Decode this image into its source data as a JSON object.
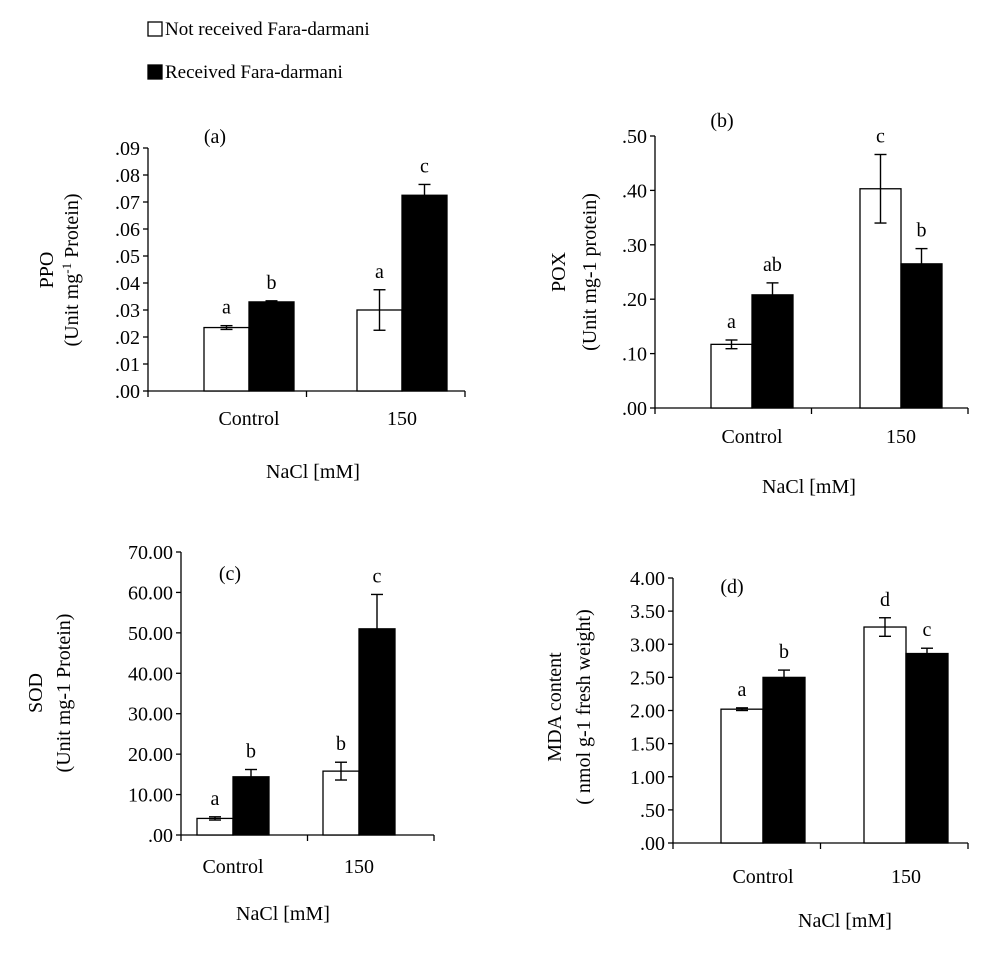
{
  "legend": {
    "items": [
      {
        "label": "Not received Fara-darmani",
        "fill": "#ffffff"
      },
      {
        "label": "Received Fara-darmani",
        "fill": "#000000"
      }
    ]
  },
  "chart_data": [
    {
      "type": "bar",
      "panel": "(a)",
      "categories": [
        "Control",
        "150"
      ],
      "xlabel": "NaCl [mM]",
      "ylabel_line1": "PPO",
      "ylabel_line2": "(Unit  mg",
      "ylabel_sup": "-1",
      "ylabel_line2_end": " Protein)",
      "ylim": [
        0,
        0.09
      ],
      "yticks": [
        ".00",
        ".01",
        ".02",
        ".03",
        ".04",
        ".05",
        ".06",
        ".07",
        ".08",
        ".09"
      ],
      "series": [
        {
          "name": "Not received Fara-darmani",
          "values": [
            0.0235,
            0.03
          ],
          "errors": [
            0.0007,
            0.0075
          ],
          "letters": [
            "a",
            "a"
          ]
        },
        {
          "name": "Received Fara-darmani",
          "values": [
            0.033,
            0.0725
          ],
          "errors": [
            0.0004,
            0.004
          ],
          "letters": [
            "b",
            "c"
          ]
        }
      ]
    },
    {
      "type": "bar",
      "panel": "(b)",
      "categories": [
        "Control",
        "150"
      ],
      "xlabel": "NaCl [mM]",
      "ylabel_line1": "POX",
      "ylabel_line2": "(Unit mg-1 protein)",
      "ylim": [
        0,
        0.5
      ],
      "yticks": [
        ".00",
        ".10",
        ".20",
        ".30",
        ".40",
        ".50"
      ],
      "series": [
        {
          "name": "Not received Fara-darmani",
          "values": [
            0.117,
            0.403
          ],
          "errors": [
            0.008,
            0.063
          ],
          "letters": [
            "a",
            "c"
          ]
        },
        {
          "name": "Received Fara-darmani",
          "values": [
            0.208,
            0.265
          ],
          "errors": [
            0.022,
            0.028
          ],
          "letters": [
            "ab",
            "b"
          ]
        }
      ]
    },
    {
      "type": "bar",
      "panel": "(c)",
      "categories": [
        "Control",
        "150"
      ],
      "xlabel": "NaCl [mM]",
      "ylabel_line1": "SOD",
      "ylabel_line2": "(Unit mg-1 Protein)",
      "ylim": [
        0,
        70
      ],
      "yticks": [
        ".00",
        "10.00",
        "20.00",
        "30.00",
        "40.00",
        "50.00",
        "60.00",
        "70.00"
      ],
      "series": [
        {
          "name": "Not received Fara-darmani",
          "values": [
            4.1,
            15.8
          ],
          "errors": [
            0.4,
            2.2
          ],
          "letters": [
            "a",
            "b"
          ]
        },
        {
          "name": "Received Fara-darmani",
          "values": [
            14.4,
            51.0
          ],
          "errors": [
            1.8,
            8.5
          ],
          "letters": [
            "b",
            "c"
          ]
        }
      ]
    },
    {
      "type": "bar",
      "panel": "(d)",
      "categories": [
        "Control",
        "150"
      ],
      "xlabel": "NaCl [mM]",
      "ylabel_line1": "MDA content",
      "ylabel_line2": "( nmol g-1 fresh weight)",
      "ylim": [
        0,
        4
      ],
      "yticks": [
        ".00",
        ".50",
        "1.00",
        "1.50",
        "2.00",
        "2.50",
        "3.00",
        "3.50",
        "4.00"
      ],
      "series": [
        {
          "name": "Not received Fara-darmani",
          "values": [
            2.02,
            3.26
          ],
          "errors": [
            0.02,
            0.14
          ],
          "letters": [
            "a",
            "d"
          ]
        },
        {
          "name": "Received Fara-darmani",
          "values": [
            2.5,
            2.86
          ],
          "errors": [
            0.11,
            0.08
          ],
          "letters": [
            "b",
            "c"
          ]
        }
      ]
    }
  ]
}
